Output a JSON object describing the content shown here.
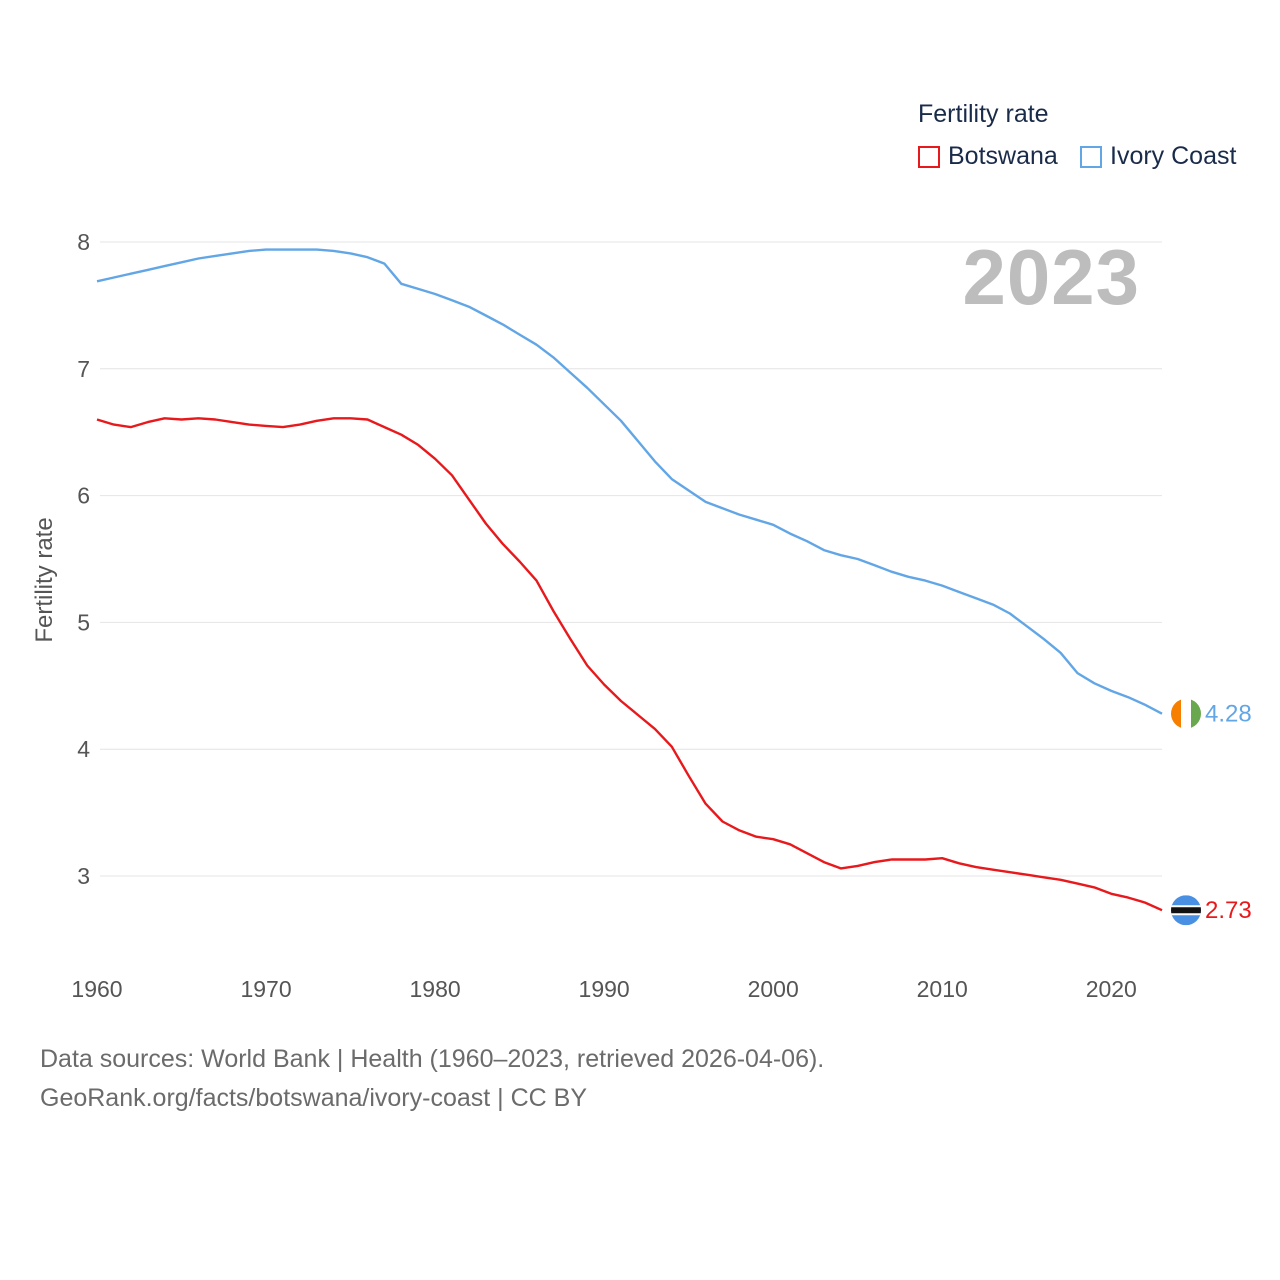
{
  "legend": {
    "title": "Fertility rate",
    "items": [
      {
        "label": "Botswana",
        "color": "#e8191c"
      },
      {
        "label": "Ivory Coast",
        "color": "#62a6e6"
      }
    ]
  },
  "year_label": "2023",
  "source": {
    "line1": "Data sources: World Bank | Health (1960–2023, retrieved 2026-04-06).",
    "line2": "GeoRank.org/facts/botswana/ivory-coast | CC BY"
  },
  "chart_data": {
    "type": "line",
    "title": "Fertility rate",
    "xlabel": "",
    "ylabel": "Fertility rate",
    "xlim": [
      1960,
      2023
    ],
    "ylim": [
      2.5,
      8.2
    ],
    "x_ticks": [
      1960,
      1970,
      1980,
      1990,
      2000,
      2010,
      2020
    ],
    "y_ticks": [
      3,
      4,
      5,
      6,
      7,
      8
    ],
    "grid": true,
    "legend_position": "top-right",
    "x": [
      1960,
      1961,
      1962,
      1963,
      1964,
      1965,
      1966,
      1967,
      1968,
      1969,
      1970,
      1971,
      1972,
      1973,
      1974,
      1975,
      1976,
      1977,
      1978,
      1979,
      1980,
      1981,
      1982,
      1983,
      1984,
      1985,
      1986,
      1987,
      1988,
      1989,
      1990,
      1991,
      1992,
      1993,
      1994,
      1995,
      1996,
      1997,
      1998,
      1999,
      2000,
      2001,
      2002,
      2003,
      2004,
      2005,
      2006,
      2007,
      2008,
      2009,
      2010,
      2011,
      2012,
      2013,
      2014,
      2015,
      2016,
      2017,
      2018,
      2019,
      2020,
      2021,
      2022,
      2023
    ],
    "series": [
      {
        "name": "Botswana",
        "color": "#e8191c",
        "end_label": "2.73",
        "values": [
          6.6,
          6.56,
          6.54,
          6.58,
          6.61,
          6.6,
          6.61,
          6.6,
          6.58,
          6.56,
          6.55,
          6.54,
          6.56,
          6.59,
          6.61,
          6.61,
          6.6,
          6.54,
          6.48,
          6.4,
          6.29,
          6.16,
          5.97,
          5.78,
          5.62,
          5.48,
          5.33,
          5.09,
          4.87,
          4.66,
          4.51,
          4.38,
          4.27,
          4.16,
          4.02,
          3.79,
          3.57,
          3.43,
          3.36,
          3.31,
          3.29,
          3.25,
          3.18,
          3.11,
          3.06,
          3.08,
          3.11,
          3.13,
          3.13,
          3.13,
          3.14,
          3.1,
          3.07,
          3.05,
          3.03,
          3.01,
          2.99,
          2.97,
          2.94,
          2.91,
          2.86,
          2.83,
          2.79,
          2.73
        ]
      },
      {
        "name": "Ivory Coast",
        "color": "#62a6e6",
        "end_label": "4.28",
        "values": [
          7.69,
          7.72,
          7.75,
          7.78,
          7.81,
          7.84,
          7.87,
          7.89,
          7.91,
          7.93,
          7.94,
          7.94,
          7.94,
          7.94,
          7.93,
          7.91,
          7.88,
          7.83,
          7.67,
          7.63,
          7.59,
          7.54,
          7.49,
          7.42,
          7.35,
          7.27,
          7.19,
          7.09,
          6.97,
          6.85,
          6.72,
          6.59,
          6.43,
          6.27,
          6.13,
          6.04,
          5.95,
          5.9,
          5.85,
          5.81,
          5.77,
          5.7,
          5.64,
          5.57,
          5.53,
          5.5,
          5.45,
          5.4,
          5.36,
          5.33,
          5.29,
          5.24,
          5.19,
          5.14,
          5.07,
          4.97,
          4.87,
          4.76,
          4.6,
          4.52,
          4.46,
          4.41,
          4.35,
          4.28
        ]
      }
    ]
  }
}
